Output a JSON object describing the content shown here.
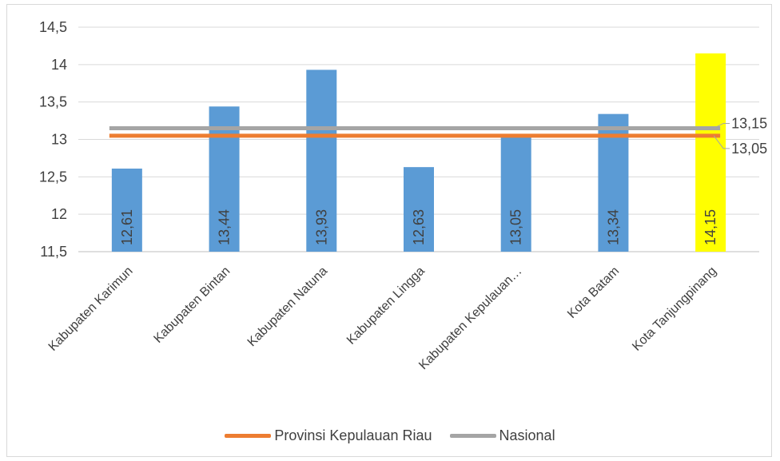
{
  "chart_data": {
    "type": "bar",
    "title": "",
    "xlabel": "",
    "ylabel": "",
    "categories": [
      "Kabupaten Karimun",
      "Kabupaten Bintan",
      "Kabupaten Natuna",
      "Kabupaten Lingga",
      "Kabupaten Kepulauan…",
      "Kota Batam",
      "Kota Tanjungpinang"
    ],
    "values": [
      12.61,
      13.44,
      13.93,
      12.63,
      13.05,
      13.34,
      14.15
    ],
    "value_labels": [
      "12,61",
      "13,44",
      "13,93",
      "12,63",
      "13,05",
      "13,34",
      "14,15"
    ],
    "bar_colors": [
      "#5b9bd5",
      "#5b9bd5",
      "#5b9bd5",
      "#5b9bd5",
      "#5b9bd5",
      "#5b9bd5",
      "#ffff00"
    ],
    "ylim": [
      11.5,
      14.5
    ],
    "yticks": [
      11.5,
      12,
      12.5,
      13,
      13.5,
      14,
      14.5
    ],
    "ytick_labels": [
      "11,5",
      "12",
      "12,5",
      "13",
      "13,5",
      "14",
      "14,5"
    ],
    "grid": true,
    "legend_position": "bottom",
    "reference_lines": [
      {
        "name": "Provinsi Kepulauan Riau",
        "value": 13.05,
        "label": "13,05",
        "color": "#ed7d31"
      },
      {
        "name": "Nasional",
        "value": 13.15,
        "label": "13,15",
        "color": "#a5a5a5"
      }
    ]
  }
}
